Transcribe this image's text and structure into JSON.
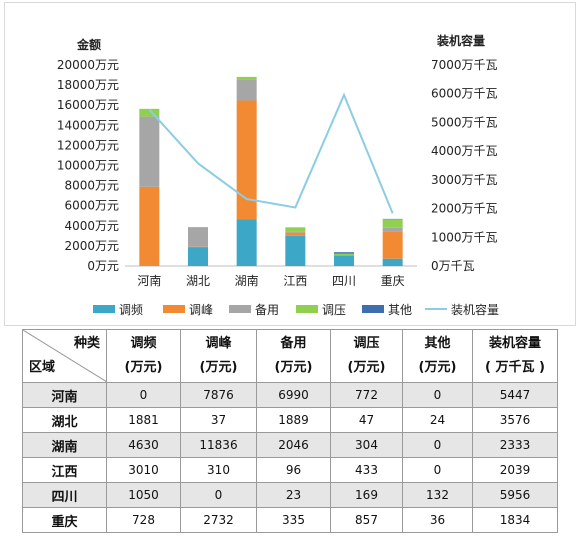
{
  "chart_data": {
    "type": "bar",
    "stacked": true,
    "left_axis_title": "金额",
    "right_axis_title": "装机容量",
    "left_ticks": [
      "0万元",
      "2000万元",
      "4000万元",
      "6000万元",
      "8000万元",
      "10000万元",
      "12000万元",
      "14000万元",
      "16000万元",
      "18000万元",
      "20000万元"
    ],
    "right_ticks": [
      "0万千瓦",
      "1000万千瓦",
      "2000万千瓦",
      "3000万千瓦",
      "4000万千瓦",
      "5000万千瓦",
      "6000万千瓦",
      "7000万千瓦"
    ],
    "ylim_left": [
      0,
      20000
    ],
    "ylim_right": [
      0,
      7000
    ],
    "categories": [
      "河南",
      "湖北",
      "湖南",
      "江西",
      "四川",
      "重庆"
    ],
    "series": [
      {
        "name": "调频",
        "color": "#3ca7c7",
        "values": [
          0,
          1881,
          4630,
          3010,
          1050,
          728
        ]
      },
      {
        "name": "调峰",
        "color": "#f28a33",
        "values": [
          7876,
          37,
          11836,
          310,
          0,
          2732
        ]
      },
      {
        "name": "备用",
        "color": "#a6a6a6",
        "values": [
          6990,
          1889,
          2046,
          96,
          23,
          335
        ]
      },
      {
        "name": "调压",
        "color": "#8fd14f",
        "values": [
          772,
          47,
          304,
          433,
          169,
          857
        ]
      },
      {
        "name": "其他",
        "color": "#3d6fb0",
        "values": [
          0,
          24,
          0,
          0,
          132,
          36
        ]
      }
    ],
    "line_series": {
      "name": "装机容量",
      "color": "#8ccde3",
      "axis": "right",
      "values": [
        5447,
        3576,
        2333,
        2039,
        5956,
        1834
      ]
    },
    "legend_position": "bottom",
    "grid": false
  },
  "table": {
    "corner_top": "种类",
    "corner_bottom": "区域",
    "headers": [
      {
        "line1": "调频",
        "line2": "(万元)"
      },
      {
        "line1": "调峰",
        "line2": "(万元)"
      },
      {
        "line1": "备用",
        "line2": "(万元)"
      },
      {
        "line1": "调压",
        "line2": "(万元)"
      },
      {
        "line1": "其他",
        "line2": "(万元)"
      },
      {
        "line1": "装机容量",
        "line2": "( 万千瓦 )"
      }
    ],
    "rows": [
      {
        "region": "河南",
        "cells": [
          "0",
          "7876",
          "6990",
          "772",
          "0",
          "5447"
        ]
      },
      {
        "region": "湖北",
        "cells": [
          "1881",
          "37",
          "1889",
          "47",
          "24",
          "3576"
        ]
      },
      {
        "region": "湖南",
        "cells": [
          "4630",
          "11836",
          "2046",
          "304",
          "0",
          "2333"
        ]
      },
      {
        "region": "江西",
        "cells": [
          "3010",
          "310",
          "96",
          "433",
          "0",
          "2039"
        ]
      },
      {
        "region": "四川",
        "cells": [
          "1050",
          "0",
          "23",
          "169",
          "132",
          "5956"
        ]
      },
      {
        "region": "重庆",
        "cells": [
          "728",
          "2732",
          "335",
          "857",
          "36",
          "1834"
        ]
      }
    ]
  }
}
